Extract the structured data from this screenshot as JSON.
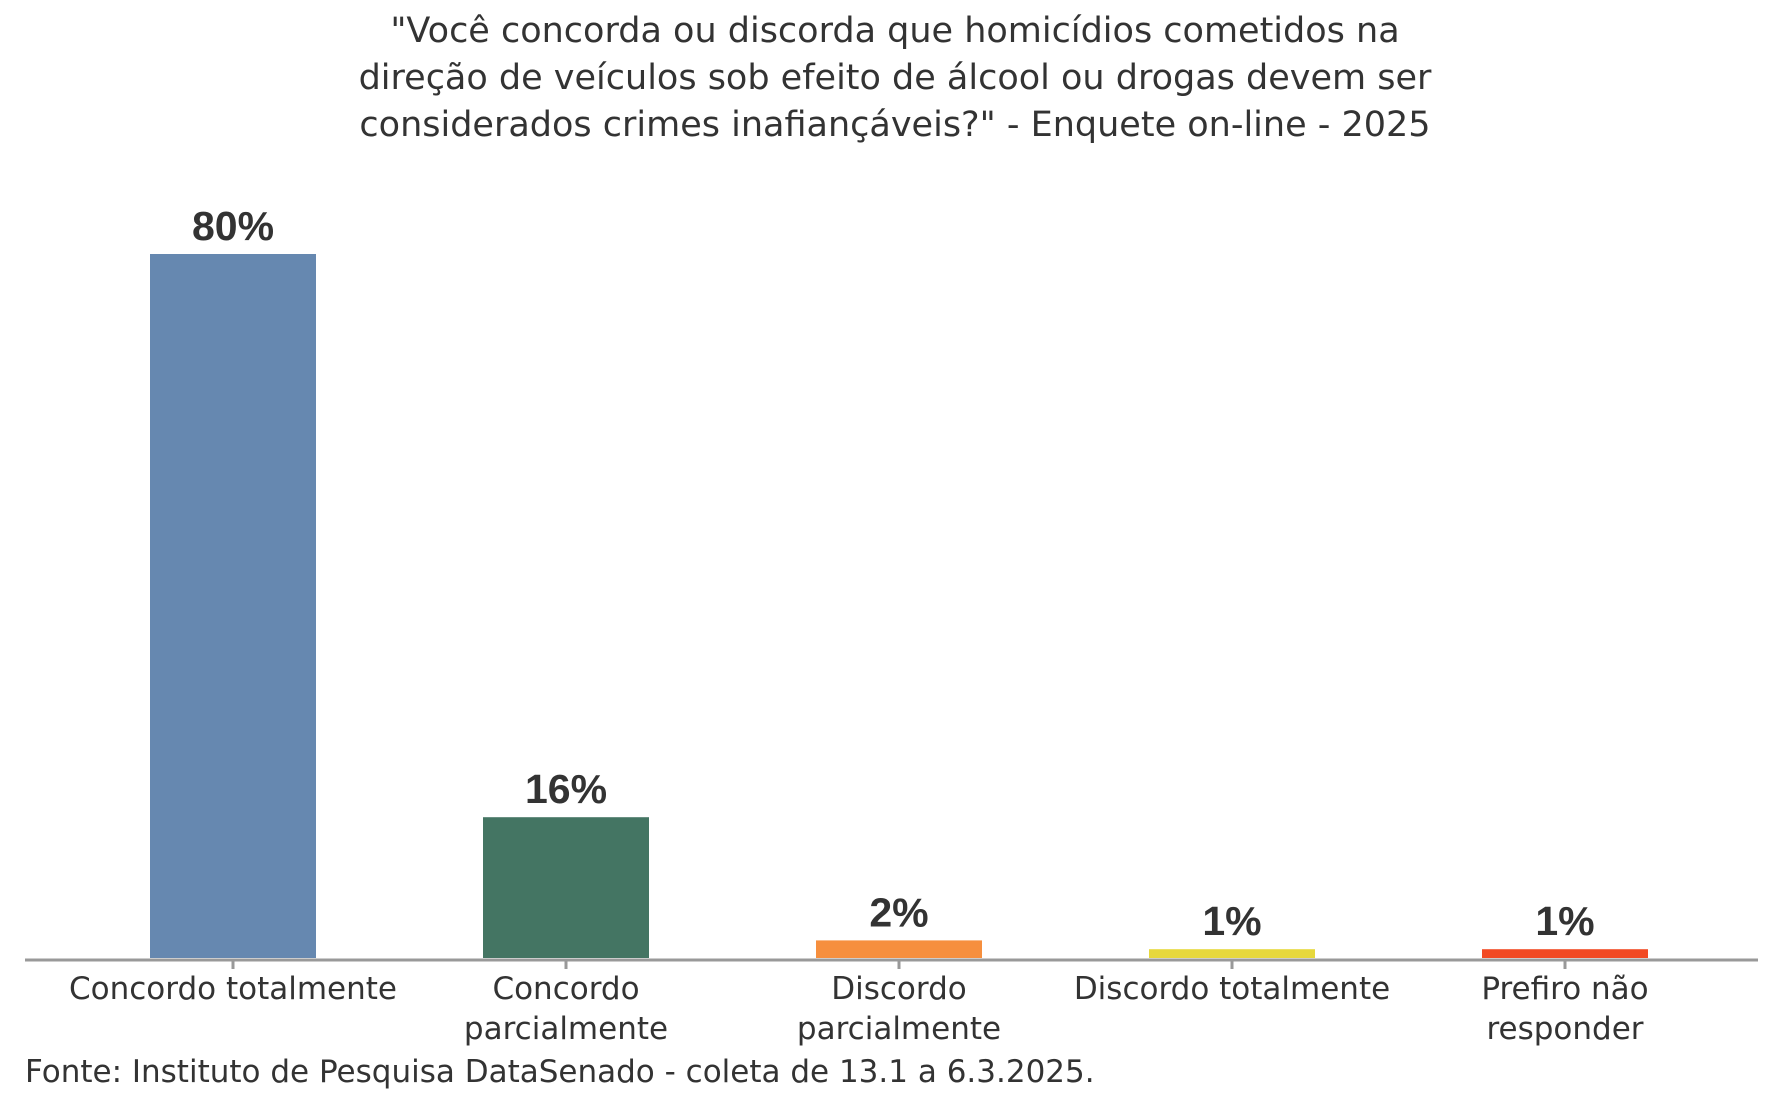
{
  "chart_data": {
    "type": "bar",
    "title_lines": [
      "\"Você concorda ou discorda que homicídios cometidos na",
      "direção de veículos sob efeito de álcool ou drogas devem ser",
      "considerados crimes inafiançáveis?\" - Enquete on-line - 2025"
    ],
    "categories": [
      [
        "Concordo totalmente"
      ],
      [
        "Concordo",
        "parcialmente"
      ],
      [
        "Discordo",
        "parcialmente"
      ],
      [
        "Discordo totalmente"
      ],
      [
        "Prefiro não",
        "responder"
      ]
    ],
    "values": [
      80,
      16,
      2,
      1,
      1
    ],
    "data_labels": [
      "80%",
      "16%",
      "2%",
      "1%",
      "1%"
    ],
    "colors": [
      "#6688B0",
      "#447563",
      "#F68F3E",
      "#E6D83C",
      "#F24A24"
    ],
    "ylim": [
      0,
      80
    ],
    "grid": false,
    "legend": "none"
  },
  "source": "Fonte: Instituto de Pesquisa DataSenado - coleta de 13.1 a 6.3.2025."
}
